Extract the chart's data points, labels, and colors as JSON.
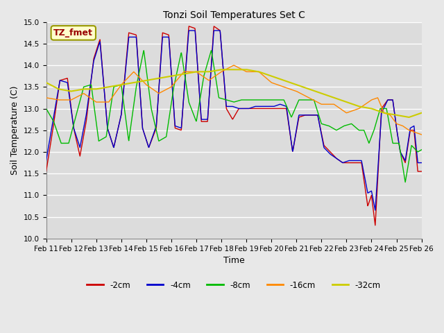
{
  "title": "Tonzi Soil Temperatures Set C",
  "xlabel": "Time",
  "ylabel": "Soil Temperature (C)",
  "annotation": "TZ_fmet",
  "ylim": [
    10.0,
    15.0
  ],
  "yticks": [
    10.0,
    10.5,
    11.0,
    11.5,
    12.0,
    12.5,
    13.0,
    13.5,
    14.0,
    14.5,
    15.0
  ],
  "xtick_labels": [
    "Feb 11",
    "Feb 12",
    "Feb 13",
    "Feb 14",
    "Feb 15",
    "Feb 16",
    "Feb 17",
    "Feb 18",
    "Feb 19",
    "Feb 20",
    "Feb 21",
    "Feb 22",
    "Feb 23",
    "Feb 24",
    "Feb 25",
    "Feb 26"
  ],
  "series_colors": [
    "#cc0000",
    "#0000cc",
    "#00bb00",
    "#ff8800",
    "#cccc00"
  ],
  "series_labels": [
    "-2cm",
    "-4cm",
    "-8cm",
    "-16cm",
    "-32cm"
  ],
  "background_color": "#e8e8e8",
  "plot_bg_color": "#dcdcdc",
  "grid_color": "#ffffff",
  "figsize": [
    6.4,
    4.8
  ],
  "dpi": 100
}
